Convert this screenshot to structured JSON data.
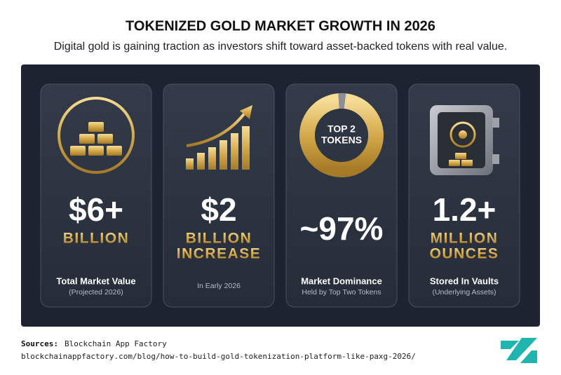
{
  "header": {
    "title": "TOKENIZED GOLD MARKET GROWTH IN 2026",
    "subtitle": "Digital gold is gaining traction as investors shift toward asset-backed tokens with real value."
  },
  "cards": [
    {
      "big": "$6+",
      "unit_lines": [
        "BILLION"
      ],
      "label": "Total Market Value",
      "sublabel": "(Projected 2026)"
    },
    {
      "big": "$2",
      "unit_lines": [
        "BILLION",
        "INCREASE"
      ],
      "sublabel": "In Early 2026"
    },
    {
      "big": "~97%",
      "icon_text": [
        "TOP 2",
        "TOKENS"
      ],
      "label": "Market Dominance",
      "sublabel": "Held by Top Two Tokens"
    },
    {
      "big": "1.2+",
      "unit_lines": [
        "MILLION",
        "OUNCES"
      ],
      "label": "Stored In Vaults",
      "sublabel": "(Underlying Assets)"
    }
  ],
  "footer": {
    "sources_label": "Sources:",
    "source": "Blockchain App Factory",
    "url": "blockchainappfactory.com/blog/how-to-build-gold-tokenization-platform-like-paxg-2026/"
  }
}
